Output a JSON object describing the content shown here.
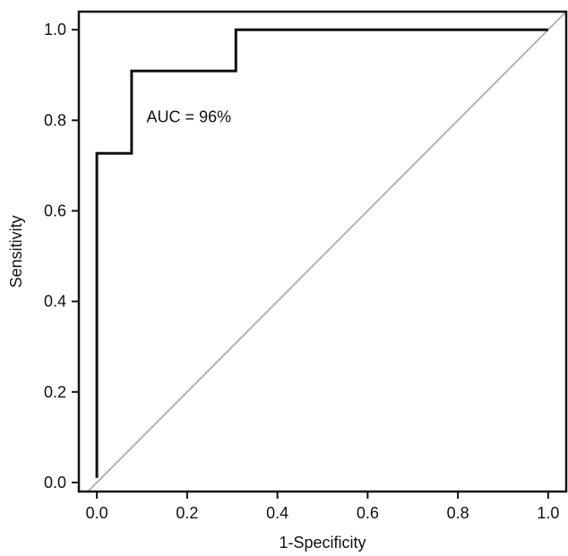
{
  "chart_data": {
    "type": "line",
    "title": "",
    "xlabel": "1-Specificity",
    "ylabel": "Sensitivity",
    "xlim": [
      -0.04,
      1.04
    ],
    "ylim": [
      -0.02,
      1.04
    ],
    "x_ticks": [
      "0.0",
      "0.2",
      "0.4",
      "0.6",
      "0.8",
      "1.0"
    ],
    "y_ticks": [
      "0.0",
      "0.2",
      "0.4",
      "0.6",
      "0.8",
      "1.0"
    ],
    "grid": false,
    "legend": "none",
    "annotation": "AUC = 96%",
    "series": [
      {
        "style": "step",
        "color": "#111111",
        "x": [
          0.0,
          0.0,
          0.077,
          0.077,
          0.308,
          0.308,
          1.0
        ],
        "y": [
          0.01,
          0.727,
          0.727,
          0.909,
          0.909,
          1.0,
          1.0
        ]
      },
      {
        "style": "reference-diagonal",
        "color": "#b3b3b3",
        "x": [
          -0.04,
          1.04
        ],
        "y": [
          -0.04,
          1.04
        ]
      }
    ]
  }
}
